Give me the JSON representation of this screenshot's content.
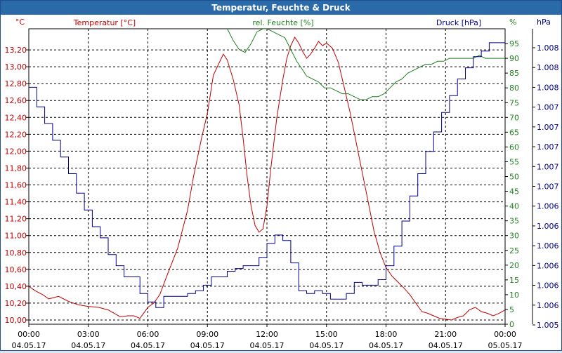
{
  "window": {
    "title": "Temperatur, Feuchte & Druck"
  },
  "colors": {
    "temperature": "#c00000",
    "humidity": "#1f7f1f",
    "pressure": "#00008b",
    "axis": "#000000",
    "grid": "#000000",
    "titlebar": "#2a6aa8"
  },
  "chart_data": {
    "type": "line",
    "title": "Temperatur, Feuchte & Druck",
    "grid": true,
    "x_ticks": [
      {
        "time": "00:00",
        "date": "04.05.17"
      },
      {
        "time": "03:00",
        "date": "04.05.17"
      },
      {
        "time": "06:00",
        "date": "04.05.17"
      },
      {
        "time": "09:00",
        "date": "04.05.17"
      },
      {
        "time": "12:00",
        "date": "04.05.17"
      },
      {
        "time": "15:00",
        "date": "04.05.17"
      },
      {
        "time": "18:00",
        "date": "04.05.17"
      },
      {
        "time": "21:00",
        "date": "04.05.17"
      },
      {
        "time": "00:00",
        "date": "05.05.17"
      }
    ],
    "axes": {
      "temperature": {
        "unit": "°C",
        "label": "Temperatur [°C]",
        "ylim": [
          9.95,
          13.45
        ],
        "ticks": [
          "10,00",
          "10,20",
          "10,40",
          "10,60",
          "10,80",
          "11,00",
          "11,20",
          "11,40",
          "11,60",
          "11,80",
          "12,00",
          "12,20",
          "12,40",
          "12,60",
          "12,80",
          "13,00",
          "13,20"
        ]
      },
      "humidity": {
        "unit": "%",
        "label": "rel. Feuchte [%]",
        "ylim": [
          0,
          100
        ],
        "ticks": [
          "0",
          "5",
          "10",
          "15",
          "20",
          "25",
          "30",
          "35",
          "40",
          "45",
          "50",
          "55",
          "60",
          "65",
          "70",
          "75",
          "80",
          "85",
          "90",
          "95"
        ]
      },
      "pressure": {
        "unit": "hPa",
        "label": "Druck [hPa]",
        "ticks": [
          "1.005",
          "1.006",
          "1.006",
          "1.006",
          "1.006",
          "1.006",
          "1.006",
          "1.007",
          "1.007",
          "1.007",
          "1.007",
          "1.007",
          "1.008",
          "1.008",
          "1.008"
        ]
      }
    },
    "series": [
      {
        "name": "Temperatur [°C]",
        "axis": "temperature",
        "x": [
          0,
          0.3,
          0.7,
          1,
          1.5,
          2,
          2.5,
          3,
          3.5,
          4,
          4.3,
          4.6,
          5,
          5.3,
          5.6,
          6,
          6.3,
          6.6,
          7,
          7.5,
          8,
          8.3,
          8.7,
          9,
          9.3,
          9.6,
          9.8,
          10,
          10.3,
          10.6,
          10.8,
          11,
          11.2,
          11.4,
          11.6,
          11.8,
          12,
          12.2,
          12.5,
          12.8,
          13,
          13.2,
          13.4,
          13.6,
          13.8,
          14,
          14.2,
          14.4,
          14.6,
          14.8,
          15,
          15.3,
          15.6,
          15.9,
          16.2,
          16.5,
          16.8,
          17.1,
          17.4,
          17.7,
          18,
          18.3,
          18.6,
          18.9,
          19.2,
          19.5,
          19.8,
          20.1,
          20.4,
          20.7,
          21,
          21.3,
          21.6,
          21.9,
          22.2,
          22.5,
          22.8,
          23.1,
          23.4,
          23.7,
          24
        ],
        "values": [
          10.4,
          10.35,
          10.3,
          10.25,
          10.28,
          10.22,
          10.18,
          10.16,
          10.15,
          10.12,
          10.08,
          10.04,
          10.05,
          10.05,
          10.02,
          10.15,
          10.2,
          10.3,
          10.55,
          10.85,
          11.3,
          11.7,
          12.15,
          12.45,
          12.9,
          13.05,
          13.15,
          13.08,
          12.85,
          12.55,
          12.15,
          11.7,
          11.35,
          11.12,
          11.04,
          11.08,
          11.35,
          11.8,
          12.4,
          12.85,
          13.1,
          13.25,
          13.35,
          13.28,
          13.18,
          13.1,
          13.15,
          13.22,
          13.3,
          13.25,
          13.28,
          13.22,
          13.05,
          12.75,
          12.45,
          12.1,
          11.75,
          11.4,
          11.05,
          10.8,
          10.62,
          10.52,
          10.45,
          10.38,
          10.3,
          10.2,
          10.1,
          10.08,
          10.05,
          10.02,
          10.01,
          10.0,
          10.03,
          10.05,
          10.12,
          10.15,
          10.1,
          10.08,
          10.05,
          10.08,
          10.12
        ]
      },
      {
        "name": "rel. Feuchte [%]",
        "axis": "humidity",
        "x": [
          10,
          10.3,
          10.6,
          10.9,
          11.2,
          11.5,
          11.8,
          12,
          12.3,
          12.6,
          12.9,
          13.2,
          13.5,
          13.8,
          14,
          14.3,
          14.6,
          14.9,
          15.2,
          15.5,
          15.8,
          16.1,
          16.4,
          16.7,
          17,
          17.3,
          17.6,
          17.9,
          18.2,
          18.5,
          18.8,
          19.1,
          19.4,
          19.7,
          20,
          20.3,
          20.6,
          20.9,
          21.2,
          21.5,
          21.8,
          22.1,
          22.4,
          22.7,
          23,
          23.3,
          23.6,
          23.9,
          24
        ],
        "values": [
          100,
          96,
          93,
          92,
          95,
          99,
          100,
          100,
          99,
          98,
          97,
          93,
          89,
          86,
          84,
          83,
          82,
          80,
          80,
          79,
          78,
          78,
          77,
          76,
          76,
          77,
          77,
          78,
          80,
          82,
          83,
          85,
          86,
          87,
          88,
          88,
          89,
          89,
          90,
          90,
          90,
          90,
          90,
          91,
          90,
          90,
          90,
          90,
          90
        ]
      },
      {
        "name": "Druck [hPa]",
        "axis": "pressure",
        "x": [
          0,
          0.4,
          0.8,
          1.2,
          1.6,
          2,
          2.4,
          2.8,
          3.2,
          3.6,
          4,
          4.4,
          4.8,
          5.2,
          5.6,
          6,
          6.4,
          6.8,
          7.2,
          7.6,
          8,
          8.4,
          8.8,
          9.2,
          9.6,
          10,
          10.4,
          10.8,
          11.2,
          11.6,
          12,
          12.4,
          12.8,
          13.2,
          13.6,
          14,
          14.4,
          14.8,
          15.2,
          15.6,
          16,
          16.4,
          16.8,
          17.2,
          17.6,
          18,
          18.4,
          18.8,
          19.2,
          19.6,
          20,
          20.4,
          20.8,
          21.2,
          21.6,
          22,
          22.4,
          22.8,
          23.2,
          23.6,
          24
        ],
        "values": [
          4.25,
          3.9,
          3.6,
          3.3,
          3.0,
          2.7,
          2.35,
          2.05,
          1.75,
          1.55,
          1.25,
          1.05,
          0.85,
          0.85,
          0.55,
          0.4,
          0.3,
          0.5,
          0.5,
          0.5,
          0.55,
          0.6,
          0.7,
          0.85,
          0.85,
          0.95,
          1.0,
          1.05,
          1.05,
          1.2,
          1.45,
          1.6,
          1.5,
          1.1,
          0.6,
          0.55,
          0.6,
          0.55,
          0.45,
          0.45,
          0.55,
          0.75,
          0.7,
          0.7,
          0.8,
          1.05,
          1.4,
          1.85,
          2.3,
          2.7,
          3.1,
          3.45,
          3.8,
          4.1,
          4.4,
          4.6,
          4.8,
          4.9,
          5.05,
          5.05,
          5.05
        ]
      }
    ]
  }
}
